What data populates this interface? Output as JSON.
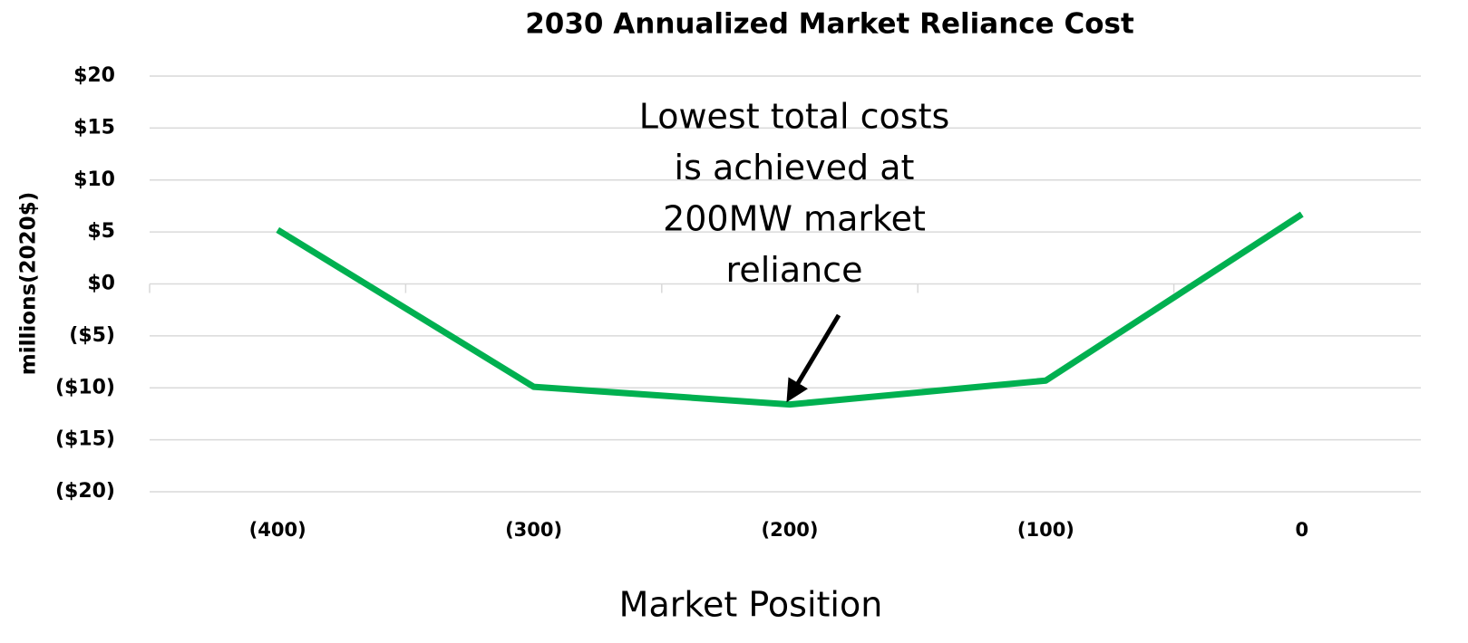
{
  "chart_data": {
    "type": "line",
    "title": "2030 Annualized Market Reliance Cost",
    "x_label": "Market Position",
    "y_label": "millions(2020$)",
    "categories": [
      "(400)",
      "(300)",
      "(200)",
      "(100)",
      "0"
    ],
    "series": [
      {
        "name": "Annualized Market Reliance Cost",
        "color": "#00b050",
        "values": [
          5.2,
          -9.9,
          -11.6,
          -9.3,
          6.7
        ]
      }
    ],
    "ylim": [
      -20,
      20
    ],
    "yticks": [
      {
        "value": 20,
        "label": "$20"
      },
      {
        "value": 15,
        "label": "$15"
      },
      {
        "value": 10,
        "label": "$10"
      },
      {
        "value": 5,
        "label": "$5"
      },
      {
        "value": 0,
        "label": "$0"
      },
      {
        "value": -5,
        "label": "($5)"
      },
      {
        "value": -10,
        "label": "($10)"
      },
      {
        "value": -15,
        "label": "($15)"
      },
      {
        "value": -20,
        "label": "($20)"
      }
    ],
    "negative_tick_color": "#ff0000",
    "grid": true,
    "annotation": {
      "lines": [
        "Lowest total costs",
        "is achieved at",
        "200MW market",
        "reliance"
      ]
    }
  }
}
